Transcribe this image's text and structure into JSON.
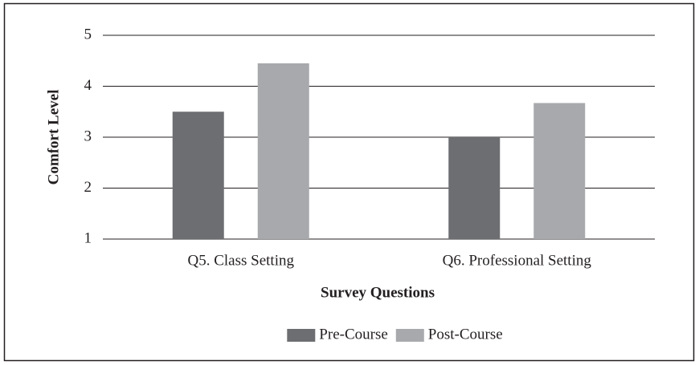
{
  "chart_data": {
    "type": "bar",
    "categories": [
      "Q5. Class Setting",
      "Q6. Professional Setting"
    ],
    "series": [
      {
        "name": "Pre-Course",
        "color": "#6d6e71",
        "values": [
          3.5,
          3.0
        ]
      },
      {
        "name": "Post-Course",
        "color": "#a7a9ac",
        "values": [
          4.45,
          3.67
        ]
      }
    ],
    "xlabel": "Survey Questions",
    "ylabel": "Comfort Level",
    "ylim": [
      1,
      5
    ],
    "yticks": [
      1,
      2,
      3,
      4,
      5
    ],
    "grid": true,
    "legend": "bottom"
  }
}
